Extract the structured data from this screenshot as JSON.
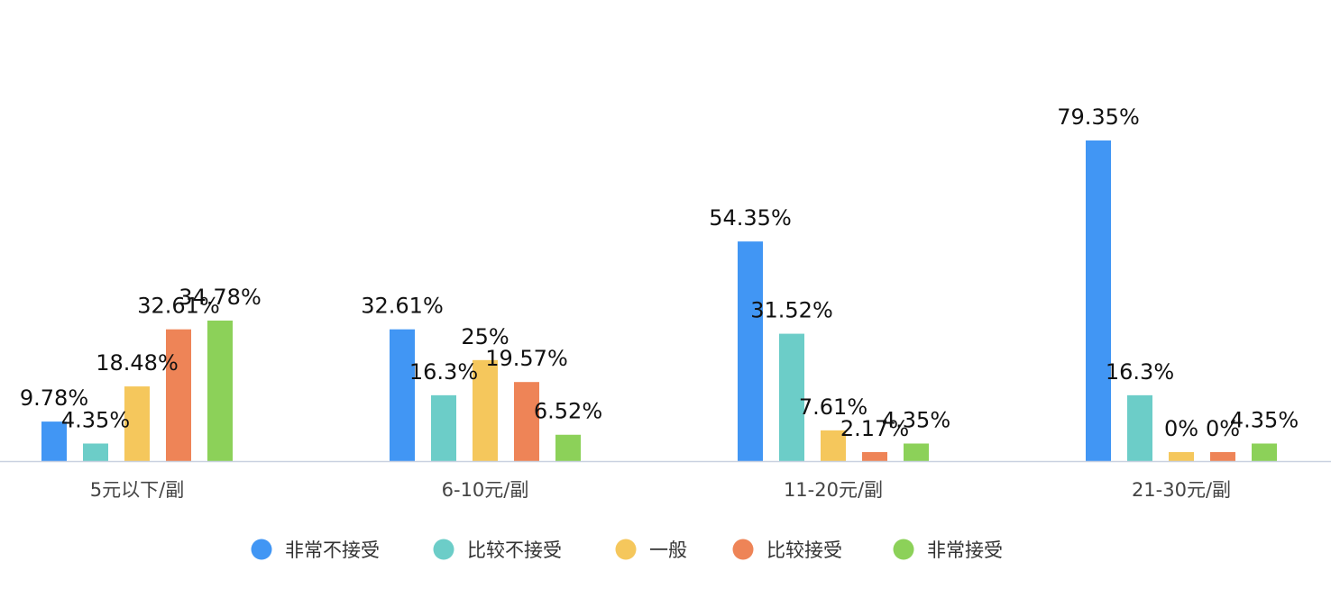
{
  "chart_data": {
    "type": "bar",
    "categories": [
      "5元以下/副",
      "6-10元/副",
      "11-20元/副",
      "21-30元/副"
    ],
    "series": [
      {
        "name": "非常不接受",
        "color": "#4196F4",
        "values": [
          9.78,
          32.61,
          54.35,
          79.35
        ],
        "labels": [
          "9.78%",
          "32.61%",
          "54.35%",
          "79.35%"
        ]
      },
      {
        "name": "比较不接受",
        "color": "#6CCDC8",
        "values": [
          4.35,
          16.3,
          31.52,
          16.3
        ],
        "labels": [
          "4.35%",
          "16.3%",
          "31.52%",
          "16.3%"
        ]
      },
      {
        "name": "一般",
        "color": "#F5C75C",
        "values": [
          18.48,
          25,
          7.61,
          0
        ],
        "labels": [
          "18.48%",
          "25%",
          "7.61%",
          "0%"
        ]
      },
      {
        "name": "比较接受",
        "color": "#EE8457",
        "values": [
          32.61,
          19.57,
          2.17,
          0
        ],
        "labels": [
          "32.61%",
          "19.57%",
          "2.17%",
          "0%"
        ]
      },
      {
        "name": "非常接受",
        "color": "#8CD159",
        "values": [
          34.78,
          6.52,
          4.35,
          4.35
        ],
        "labels": [
          "34.78%",
          "6.52%",
          "4.35%",
          "4.35%"
        ]
      }
    ],
    "ylim": [
      0,
      100
    ],
    "grid": false,
    "legend_position": "bottom"
  }
}
